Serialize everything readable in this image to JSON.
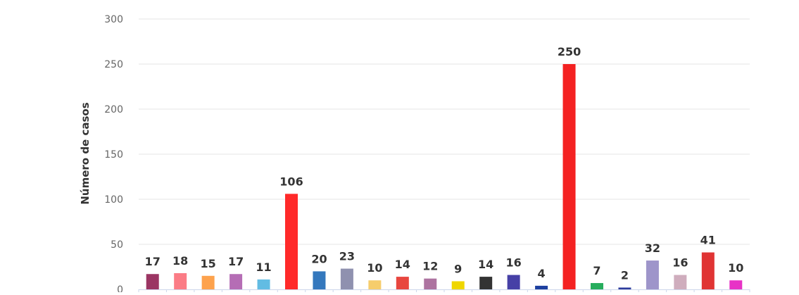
{
  "chart_data": {
    "type": "bar",
    "title": "",
    "xlabel": "",
    "ylabel": "Número de casos",
    "ylim": [
      0,
      300
    ],
    "yticks": [
      0,
      50,
      100,
      150,
      200,
      250,
      300
    ],
    "grid": true,
    "legend": "none",
    "values": [
      17,
      18,
      15,
      17,
      11,
      106,
      20,
      23,
      10,
      14,
      12,
      9,
      14,
      16,
      4,
      250,
      7,
      2,
      32,
      16,
      41,
      10
    ],
    "colors": [
      "#9b3563",
      "#fb7c86",
      "#fda24d",
      "#b56db5",
      "#62bce3",
      "#ff2a2a",
      "#3478bd",
      "#8f91af",
      "#f6cd6c",
      "#e8463f",
      "#ad73a0",
      "#efd600",
      "#333333",
      "#4640a6",
      "#1d3f9f",
      "#f42222",
      "#27ad5d",
      "#2c3b9c",
      "#9e95ca",
      "#cfadbd",
      "#e03434",
      "#e733c6"
    ]
  }
}
